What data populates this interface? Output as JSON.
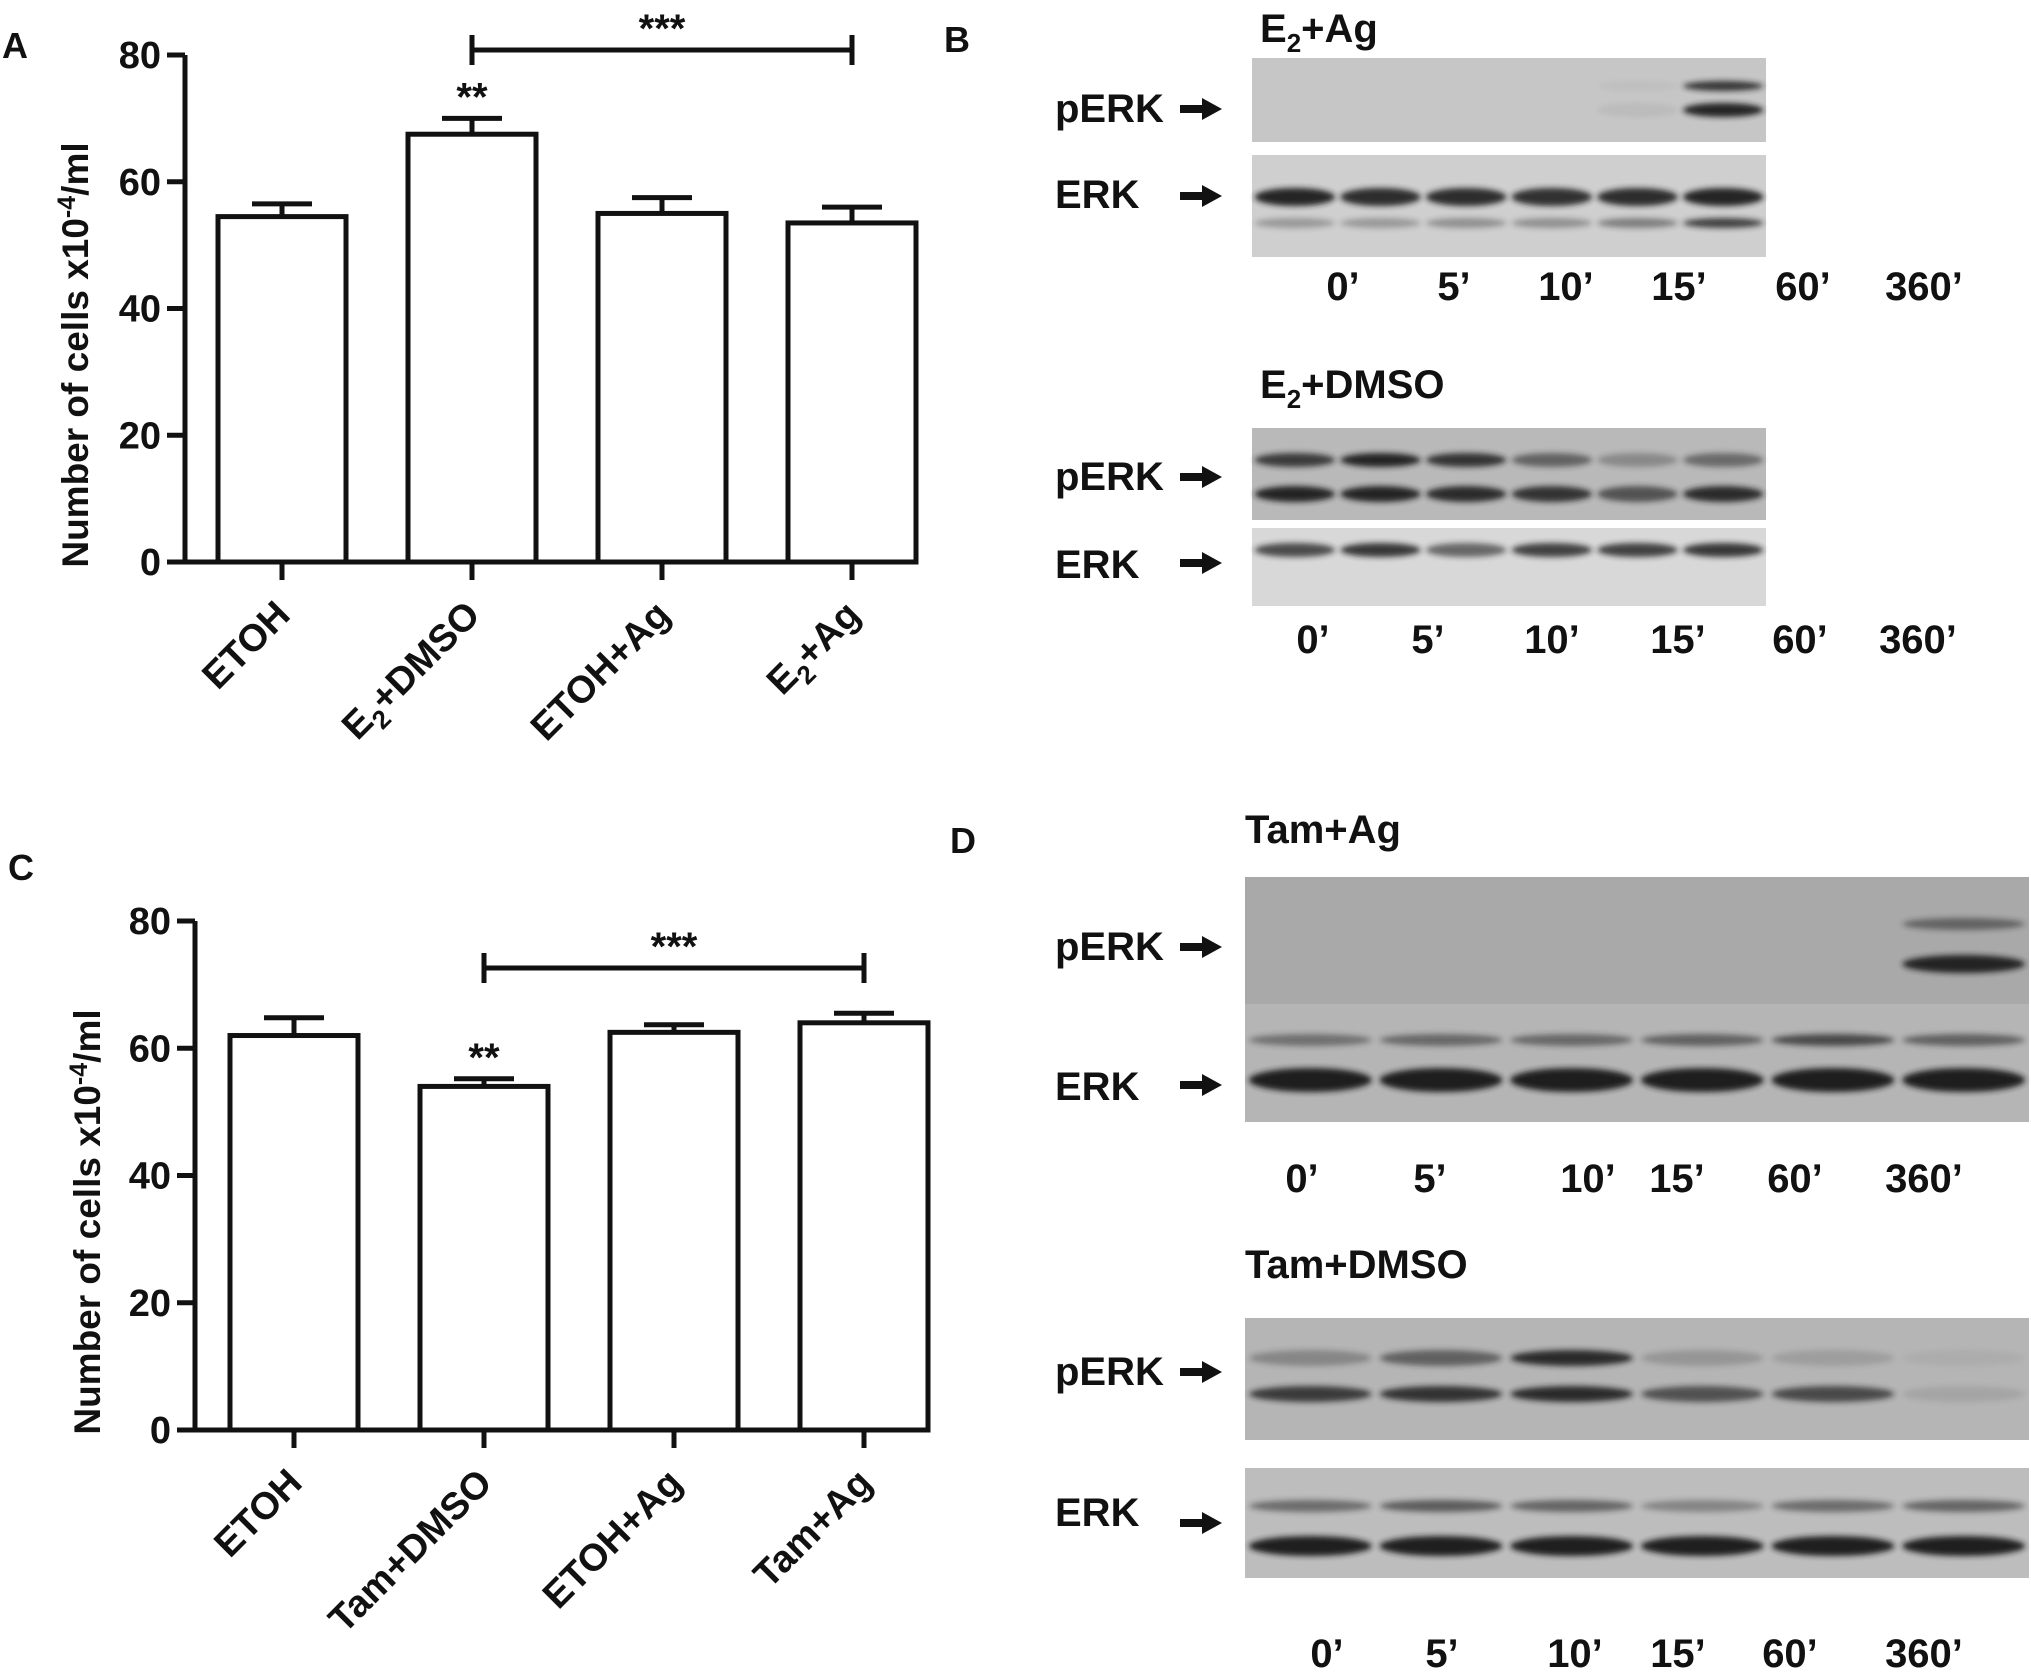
{
  "panel_letters": [
    "A",
    "B",
    "C",
    "D"
  ],
  "chart_data": [
    {
      "type": "bar",
      "panel": "A",
      "categories": [
        "ETOH",
        "E2+DMSO",
        "ETOH+Ag",
        "E2+Ag"
      ],
      "values": [
        54.5,
        67.5,
        55,
        53.5
      ],
      "errors": [
        2,
        2.5,
        2.5,
        2.5
      ],
      "ylabel": "Number of cells x10-4/ml",
      "ylim": [
        0,
        80
      ],
      "yticks": [
        "0",
        "20",
        "40",
        "60",
        "80"
      ],
      "bar_annotations": [
        "",
        "**",
        "",
        ""
      ],
      "significance": {
        "from": 1,
        "to": 3,
        "label": "***"
      }
    },
    {
      "type": "bar",
      "panel": "C",
      "categories": [
        "ETOH",
        "Tam+DMSO",
        "ETOH+Ag",
        "Tam+Ag"
      ],
      "values": [
        62,
        54,
        62.5,
        64
      ],
      "errors": [
        2.8,
        1.2,
        1.2,
        1.5
      ],
      "ylabel": "Number of cells x10-4/ml",
      "ylim": [
        0,
        80
      ],
      "yticks": [
        "0",
        "20",
        "40",
        "60",
        "80"
      ],
      "bar_annotations": [
        "",
        "**",
        "",
        ""
      ],
      "significance": {
        "from": 1,
        "to": 3,
        "label": "***"
      }
    }
  ],
  "blots": {
    "b1": {
      "title": "E2+Ag",
      "rows": [
        "pERK",
        "ERK"
      ],
      "times": [
        "0’",
        "5’",
        "10’",
        "15’",
        "60’",
        "360’"
      ]
    },
    "b2": {
      "title": "E2+DMSO",
      "rows": [
        "pERK",
        "ERK"
      ],
      "times": [
        "0’",
        "5’",
        "10’",
        "15’",
        "60’",
        "360’"
      ]
    },
    "d1": {
      "title": "Tam+Ag",
      "rows": [
        "pERK",
        "ERK"
      ],
      "times": [
        "0’",
        "5’",
        "10’",
        "15’",
        "60’",
        "360’"
      ]
    },
    "d2": {
      "title": "Tam+DMSO",
      "rows": [
        "pERK",
        "ERK"
      ],
      "times": [
        "0’",
        "5’",
        "10’",
        "15’",
        "60’",
        "360’"
      ]
    }
  },
  "colors": {
    "bar_fill": "#ffffff",
    "ink": "#111111",
    "blot_bg": "#c9c9c9",
    "band": "#1c1c1c"
  }
}
